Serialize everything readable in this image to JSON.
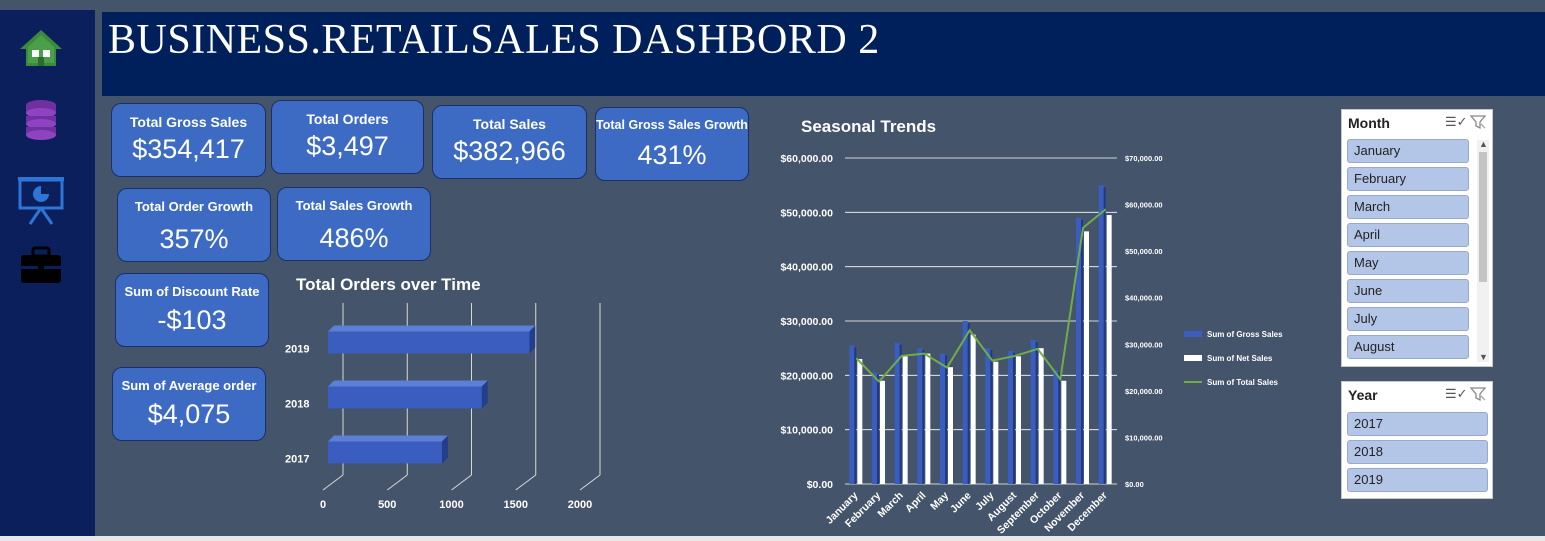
{
  "header": {
    "title": "BUSINESS.RETAILSALES DASHBORD 2"
  },
  "sidebar": {
    "icons": [
      "home-icon",
      "database-icon",
      "presentation-icon",
      "briefcase-icon"
    ]
  },
  "kpis": {
    "gross_sales": {
      "label": "Total Gross Sales",
      "value": "$354,417"
    },
    "orders": {
      "label": "Total Orders",
      "value": "$3,497"
    },
    "sales": {
      "label": "Total Sales",
      "value": "$382,966"
    },
    "gross_growth": {
      "label": "Total Gross Sales Growth",
      "value": "431%"
    },
    "order_growth": {
      "label": "Total Order Growth",
      "value": "357%"
    },
    "sales_growth": {
      "label": "Total Sales Growth",
      "value": "486%"
    },
    "discount": {
      "label": "Sum of Discount Rate",
      "value": "-$103"
    },
    "avg_order": {
      "label": "Sum of  Average order",
      "value": "$4,075"
    }
  },
  "chart_data": [
    {
      "type": "bar",
      "orientation": "horizontal",
      "title": "Total Orders over Time",
      "categories": [
        "2017",
        "2018",
        "2019"
      ],
      "values": [
        840,
        1150,
        1520
      ],
      "xticks": [
        "0",
        "500",
        "1000",
        "1500",
        "2000"
      ],
      "xlim": [
        0,
        2000
      ]
    },
    {
      "type": "bar",
      "title": "Seasonal Trends",
      "categories": [
        "January",
        "February",
        "March",
        "April",
        "May",
        "June",
        "July",
        "August",
        "September",
        "October",
        "November",
        "December"
      ],
      "series": [
        {
          "name": "Sum of Gross Sales",
          "values": [
            25500,
            20500,
            26000,
            25000,
            24000,
            30000,
            25000,
            24500,
            26500,
            21000,
            49000,
            55000
          ],
          "color": "#3a5dbf",
          "axis": "left"
        },
        {
          "name": "Sum of Net Sales",
          "values": [
            23000,
            19000,
            23500,
            24000,
            21500,
            27500,
            22500,
            23500,
            25000,
            19000,
            46500,
            49500
          ],
          "color": "#ffffff",
          "axis": "left"
        },
        {
          "name": "Sum of Total Sales",
          "type": "line",
          "values": [
            27000,
            22000,
            27500,
            28000,
            25000,
            33000,
            26500,
            27500,
            29000,
            22500,
            55000,
            59000
          ],
          "color": "#70ad47",
          "axis": "right"
        }
      ],
      "yticks_left": [
        "$0.00",
        "$10,000.00",
        "$20,000.00",
        "$30,000.00",
        "$40,000.00",
        "$50,000.00",
        "$60,000.00"
      ],
      "yticks_right": [
        "$0.00",
        "$10,000.00",
        "$20,000.00",
        "$30,000.00",
        "$40,000.00",
        "$50,000.00",
        "$60,000.00",
        "$70,000.00"
      ],
      "ylim_left": [
        0,
        60000
      ],
      "ylim_right": [
        0,
        70000
      ],
      "legend": "right"
    }
  ],
  "slicers": {
    "month": {
      "title": "Month",
      "items": [
        "January",
        "February",
        "March",
        "April",
        "May",
        "June",
        "July",
        "August"
      ]
    },
    "year": {
      "title": "Year",
      "items": [
        "2017",
        "2018",
        "2019"
      ]
    }
  }
}
